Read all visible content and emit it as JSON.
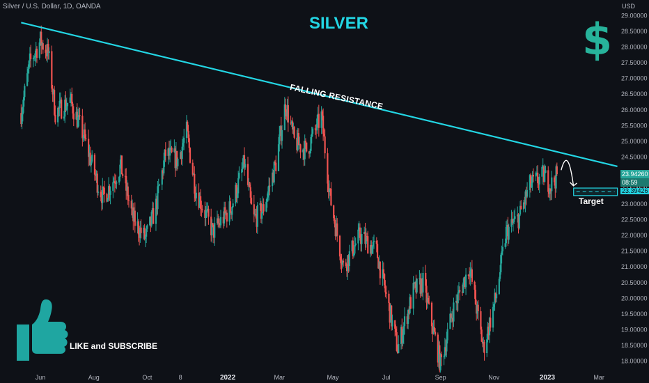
{
  "header": {
    "symbol": "Silver / U.S. Dollar, 1D, OANDA",
    "currency": "USD"
  },
  "overlay": {
    "title": "SILVER",
    "resistance_label": "FALLING RESISTANCE",
    "target_label": "Target",
    "cta": "LIKE and SUBSCRIBE",
    "dollar_symbol": "$"
  },
  "price_tags": {
    "last": "23.94260",
    "countdown": "08:59",
    "target": "23.39426"
  },
  "colors": {
    "background": "#0e1117",
    "up": "#26a69a",
    "down": "#ef5350",
    "accent": "#23d6e4",
    "dollar": "#27b39b",
    "thumb": "#1fa6a1"
  },
  "icons": [
    "thumbs-up-icon",
    "dollar-icon",
    "curved-arrow-icon"
  ],
  "chart_data": {
    "type": "candlestick",
    "ylim": [
      17.9,
      29.1
    ],
    "y_ticks": [
      "29.00000",
      "28.50000",
      "28.00000",
      "27.50000",
      "27.00000",
      "26.50000",
      "26.00000",
      "25.50000",
      "25.00000",
      "24.50000",
      "24.00000",
      "23.50000",
      "23.00000",
      "22.50000",
      "22.00000",
      "21.50000",
      "21.00000",
      "20.50000",
      "20.00000",
      "19.50000",
      "19.00000",
      "18.50000",
      "18.00000"
    ],
    "x_ticks": [
      "Jun",
      "Aug",
      "Oct",
      "8",
      "2022",
      "Mar",
      "May",
      "Jul",
      "Sep",
      "Nov",
      "2023",
      "Mar"
    ],
    "x_tick_dates": [
      "2021-06-01",
      "2021-08-01",
      "2021-10-01",
      "2021-11-08",
      "2022-01-01",
      "2022-03-01",
      "2022-05-01",
      "2022-07-01",
      "2022-09-01",
      "2022-11-01",
      "2023-01-01",
      "2023-03-01"
    ],
    "bold_ticks": [
      "2022",
      "2023"
    ],
    "grid": false,
    "close_anchors": [
      {
        "date": "2021-05-10",
        "close": 25.9
      },
      {
        "date": "2021-05-20",
        "close": 27.5
      },
      {
        "date": "2021-06-01",
        "close": 28.2
      },
      {
        "date": "2021-06-10",
        "close": 27.8
      },
      {
        "date": "2021-06-18",
        "close": 25.9
      },
      {
        "date": "2021-07-05",
        "close": 26.3
      },
      {
        "date": "2021-07-20",
        "close": 25.2
      },
      {
        "date": "2021-08-06",
        "close": 23.6
      },
      {
        "date": "2021-08-12",
        "close": 23.2
      },
      {
        "date": "2021-09-01",
        "close": 24.2
      },
      {
        "date": "2021-09-15",
        "close": 22.5
      },
      {
        "date": "2021-09-29",
        "close": 21.9
      },
      {
        "date": "2021-10-10",
        "close": 22.8
      },
      {
        "date": "2021-10-22",
        "close": 24.6
      },
      {
        "date": "2021-11-05",
        "close": 24.4
      },
      {
        "date": "2021-11-15",
        "close": 25.3
      },
      {
        "date": "2021-11-25",
        "close": 23.5
      },
      {
        "date": "2021-12-15",
        "close": 22.1
      },
      {
        "date": "2022-01-05",
        "close": 22.9
      },
      {
        "date": "2022-01-20",
        "close": 24.3
      },
      {
        "date": "2022-01-30",
        "close": 22.5
      },
      {
        "date": "2022-02-10",
        "close": 22.8
      },
      {
        "date": "2022-02-25",
        "close": 24.3
      },
      {
        "date": "2022-03-08",
        "close": 26.2
      },
      {
        "date": "2022-03-18",
        "close": 25.0
      },
      {
        "date": "2022-04-01",
        "close": 24.7
      },
      {
        "date": "2022-04-18",
        "close": 25.8
      },
      {
        "date": "2022-04-28",
        "close": 23.2
      },
      {
        "date": "2022-05-13",
        "close": 21.0
      },
      {
        "date": "2022-06-01",
        "close": 22.0
      },
      {
        "date": "2022-06-20",
        "close": 21.5
      },
      {
        "date": "2022-07-14",
        "close": 18.4
      },
      {
        "date": "2022-08-01",
        "close": 20.2
      },
      {
        "date": "2022-08-12",
        "close": 20.5
      },
      {
        "date": "2022-09-01",
        "close": 17.9
      },
      {
        "date": "2022-09-15",
        "close": 19.6
      },
      {
        "date": "2022-10-04",
        "close": 21.0
      },
      {
        "date": "2022-10-20",
        "close": 18.4
      },
      {
        "date": "2022-11-03",
        "close": 20.0
      },
      {
        "date": "2022-11-15",
        "close": 22.1
      },
      {
        "date": "2022-11-30",
        "close": 22.6
      },
      {
        "date": "2022-12-12",
        "close": 23.6
      },
      {
        "date": "2022-12-28",
        "close": 23.9
      },
      {
        "date": "2023-01-05",
        "close": 23.6
      },
      {
        "date": "2023-01-12",
        "close": 23.9
      }
    ],
    "resistance_line": {
      "start": {
        "date": "2021-05-10",
        "price": 28.78
      },
      "end": {
        "date": "2023-03-22",
        "price": 24.2
      }
    },
    "projection_path": [
      "2023-01-12",
      "2023-01-23",
      "2023-02-03"
    ],
    "target_zone": {
      "from_date": "2023-01-31",
      "to_date": "2023-03-22",
      "low": 23.27,
      "high": 23.51
    }
  }
}
